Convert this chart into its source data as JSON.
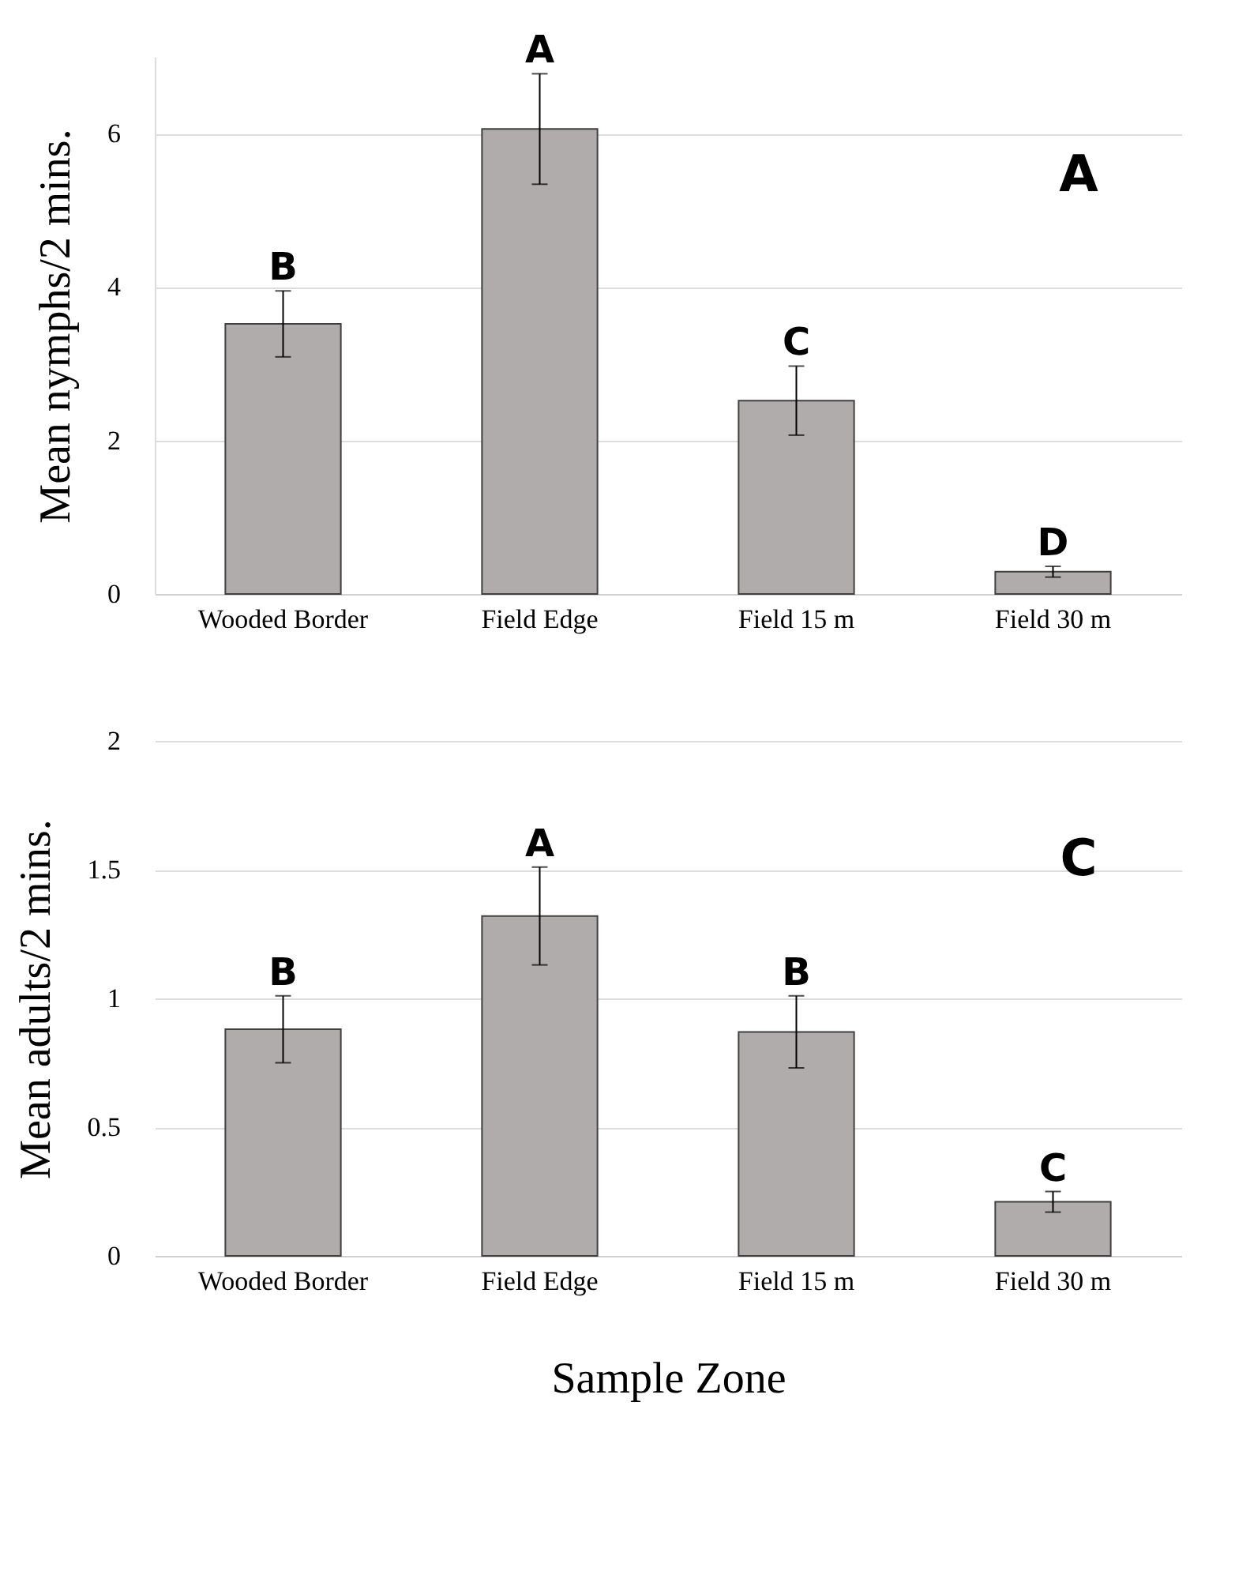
{
  "chart_data": [
    {
      "type": "bar",
      "ylabel": "Mean nymphs/2 mins.",
      "categories": [
        "Wooded Border",
        "Field Edge",
        "Field 15 m",
        "Field 30 m"
      ],
      "series": [
        {
          "color": "#b0acab",
          "values": [
            3.52,
            6.06,
            2.52,
            0.29
          ],
          "errors": [
            0.43,
            0.72,
            0.45,
            0.07
          ]
        }
      ],
      "ylim": [
        0,
        7
      ],
      "yticks": [
        0,
        2,
        4,
        6
      ],
      "grid": "y",
      "annotations": [
        "A",
        {
          "text": "B",
          "x": "Wooded Border",
          "y": 3.95
        },
        {
          "text": "A",
          "x": "Field Edge",
          "y": 6.78
        },
        {
          "text": "C",
          "x": "Field 15 m",
          "y": 2.97
        },
        {
          "text": "D",
          "x": "Field 30 m",
          "y": 0.36
        }
      ]
    },
    {
      "type": "bar",
      "ylabel": "Mean adults/2 mins.",
      "xlabel": "Sample Zone",
      "categories": [
        "Wooded Border",
        "Field Edge",
        "Field 15 m",
        "Field 30 m"
      ],
      "series": [
        {
          "color": "#b0acab",
          "values": [
            0.88,
            1.32,
            0.87,
            0.21
          ],
          "errors": [
            0.13,
            0.19,
            0.14,
            0.04
          ]
        }
      ],
      "ylim": [
        0,
        2
      ],
      "yticks": [
        {
          "value": 0,
          "label": "0"
        },
        0.5,
        {
          "value": 1,
          "label": "1"
        },
        1.5,
        {
          "value": 2,
          "label": "2"
        }
      ],
      "grid": "y",
      "annotations": [
        "C",
        {
          "text": "B",
          "x": "Wooded Border",
          "y": 1.01
        },
        {
          "text": "A",
          "x": "Field Edge",
          "y": 1.51
        },
        {
          "text": "B",
          "x": "Field 15 m",
          "y": 1.01
        },
        {
          "text": "C",
          "x": "Field 30 m",
          "y": 0.25
        }
      ]
    }
  ]
}
